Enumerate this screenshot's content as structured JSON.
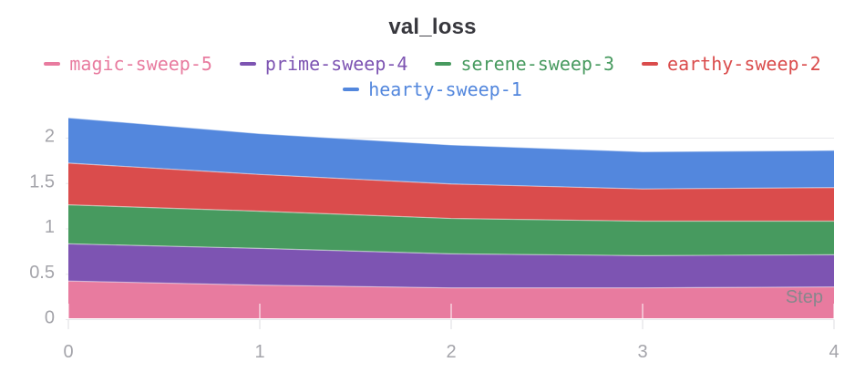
{
  "panel": {
    "background": "#ffffff"
  },
  "colors": {
    "title_text": "#37373d",
    "axis_text": "#a4a4aa",
    "grid": "#e8e8eb",
    "step_label": "#87878c",
    "band_edge_highlight": "rgba(255,255,255,0.5)"
  },
  "chart_data": {
    "type": "area",
    "stacked": true,
    "title": "val_loss",
    "xlabel": "Step",
    "ylabel": "",
    "grid": "horizontal",
    "legend_position": "top",
    "x": [
      0,
      1,
      2,
      3,
      4
    ],
    "xlim": [
      0,
      4
    ],
    "ylim": [
      0,
      2.33
    ],
    "xticks": [
      0,
      1,
      2,
      3,
      4
    ],
    "yticks": [
      0,
      0.5,
      1,
      1.5,
      2
    ],
    "series": [
      {
        "name": "magic-sweep-5",
        "color": "#E87B9F",
        "values": [
          0.41,
          0.365,
          0.335,
          0.335,
          0.345
        ]
      },
      {
        "name": "prime-sweep-4",
        "color": "#7D54B2",
        "values": [
          0.41,
          0.405,
          0.375,
          0.355,
          0.355
        ]
      },
      {
        "name": "serene-sweep-3",
        "color": "#479A5F",
        "values": [
          0.43,
          0.41,
          0.39,
          0.38,
          0.37
        ]
      },
      {
        "name": "earthy-sweep-2",
        "color": "#DA4C4C",
        "values": [
          0.46,
          0.405,
          0.38,
          0.355,
          0.37
        ]
      },
      {
        "name": "hearty-sweep-1",
        "color": "#5387DD",
        "values": [
          0.5,
          0.45,
          0.43,
          0.41,
          0.41
        ]
      }
    ],
    "stack_order_bottom_to_top": [
      "magic-sweep-5",
      "prime-sweep-4",
      "serene-sweep-3",
      "earthy-sweep-2",
      "hearty-sweep-1"
    ],
    "legend_rows": [
      [
        "magic-sweep-5",
        "prime-sweep-4",
        "serene-sweep-3",
        "earthy-sweep-2"
      ],
      [
        "hearty-sweep-1"
      ]
    ]
  }
}
